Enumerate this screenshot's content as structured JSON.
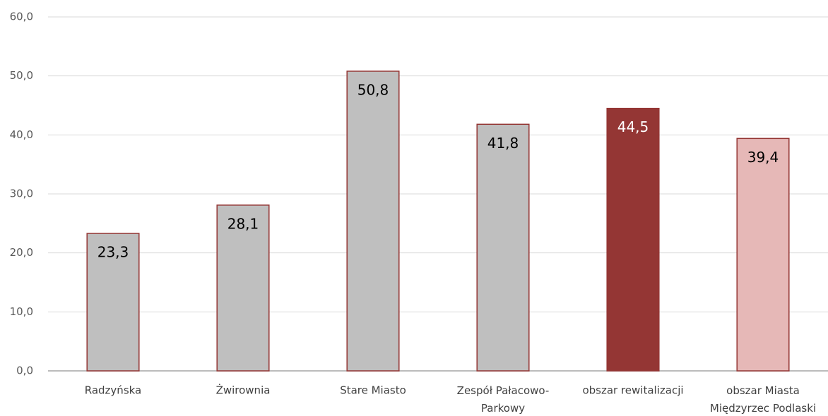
{
  "chart_data": {
    "type": "bar",
    "categories": [
      "Radzyńska",
      "Żwirownia",
      "Stare Miasto",
      "Zespół Pałacowo-Parkowy",
      "obszar rewitalizacji",
      "obszar Miasta Międzyrzec Podlaski"
    ],
    "values": [
      23.3,
      28.1,
      50.8,
      41.8,
      44.5,
      39.4
    ],
    "value_labels": [
      "23,3",
      "28,1",
      "50,8",
      "41,8",
      "44,5",
      "39,4"
    ],
    "colors": [
      "#bfbfbf",
      "#bfbfbf",
      "#bfbfbf",
      "#bfbfbf",
      "#943634",
      "#e6b8b7"
    ],
    "border_color": "#943634",
    "label_colors": [
      "#000000",
      "#000000",
      "#000000",
      "#000000",
      "#ffffff",
      "#000000"
    ],
    "ylim": [
      0,
      60
    ],
    "yticks": [
      {
        "value": 0,
        "label": "0,0"
      },
      {
        "value": 10,
        "label": "10,0"
      },
      {
        "value": 20,
        "label": "20,0"
      },
      {
        "value": 30,
        "label": "30,0"
      },
      {
        "value": 40,
        "label": "40,0"
      },
      {
        "value": 50,
        "label": "50,0"
      },
      {
        "value": 60,
        "label": "60,0"
      }
    ],
    "grid": true
  }
}
